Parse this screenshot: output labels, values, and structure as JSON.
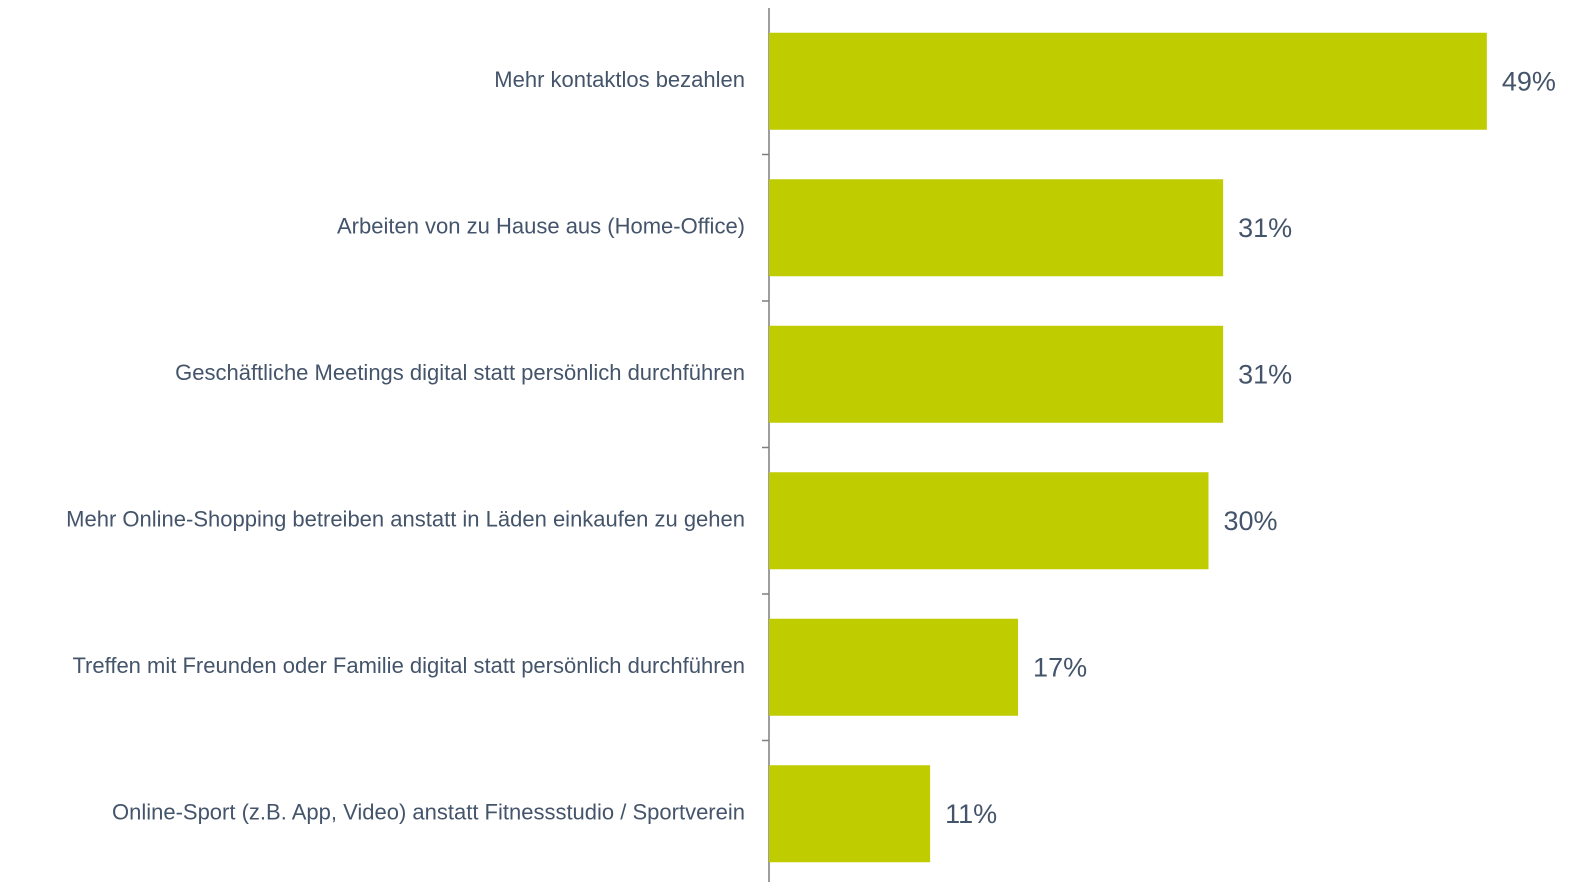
{
  "chart_data": {
    "type": "hbar",
    "categories": [
      "Mehr kontaktlos bezahlen",
      "Arbeiten von zu Hause aus (Home-Office)",
      "Geschäftliche Meetings digital statt persönlich durchführen",
      "Mehr Online-Shopping betreiben anstatt in Läden einkaufen zu gehen",
      "Treffen mit Freunden oder Familie digital statt persönlich durchführen",
      "Online-Sport (z.B. App, Video) anstatt Fitnessstudio / Sportverein"
    ],
    "values": [
      49,
      31,
      31,
      30,
      17,
      11
    ],
    "value_labels": [
      "49%",
      "31%",
      "31%",
      "30%",
      "17%",
      "11%"
    ],
    "color": "#bfcc00"
  }
}
